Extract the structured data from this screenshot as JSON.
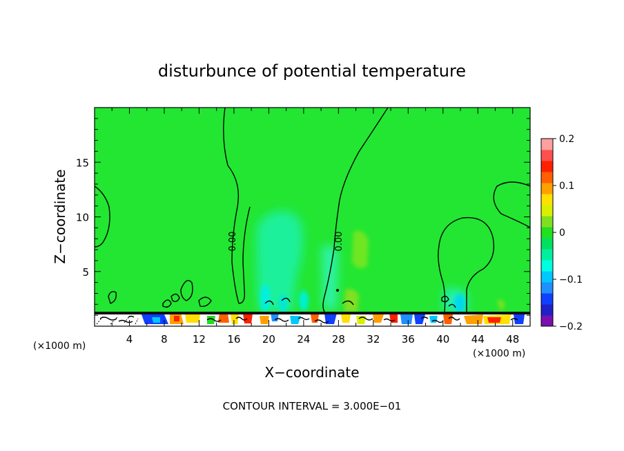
{
  "chart_data": {
    "type": "heatmap",
    "title": "disturbunce of potential temperature",
    "xlabel": "X−coordinate",
    "ylabel": "Z−coordinate",
    "x_unit_left": "(×1000 m)",
    "x_unit_right": "(×1000 m)",
    "xlim": [
      0,
      50
    ],
    "ylim": [
      0,
      20
    ],
    "x_ticks": [
      4,
      8,
      12,
      16,
      20,
      24,
      28,
      32,
      36,
      40,
      44,
      48
    ],
    "y_ticks": [
      5,
      10,
      15
    ],
    "colorbar": {
      "min": -0.2,
      "max": 0.2,
      "tick_labels": [
        "0.2",
        "0.1",
        "0",
        "−0.1",
        "−0.2"
      ],
      "tick_values": [
        0.2,
        0.1,
        0,
        -0.1,
        -0.2
      ],
      "colors": [
        "#7a10b0",
        "#2020c8",
        "#1040ff",
        "#1e90ff",
        "#00c8ff",
        "#00ffe0",
        "#00f0a0",
        "#00e060",
        "#20e020",
        "#80e020",
        "#d8f000",
        "#ffe000",
        "#ffa000",
        "#ff6000",
        "#ff2000",
        "#ff5050",
        "#ffa0a0"
      ]
    },
    "contour_labels": [
      {
        "text": "0.00",
        "x": 15.7,
        "y": 8.2
      },
      {
        "text": "0.00",
        "x": 28.2,
        "y": 8.0
      }
    ],
    "footer": "CONTOUR INTERVAL = 3.000E−01"
  }
}
